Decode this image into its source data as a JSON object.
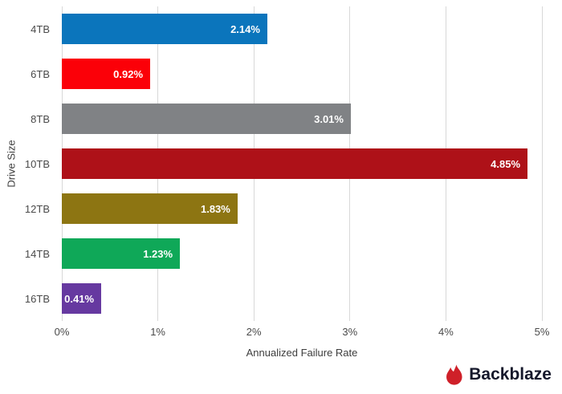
{
  "chart_data": {
    "type": "bar",
    "orientation": "horizontal",
    "title": "",
    "xlabel": "Annualized Failure Rate",
    "ylabel": "Drive Size",
    "xlim": [
      0,
      5
    ],
    "xticks": [
      "0%",
      "1%",
      "2%",
      "3%",
      "4%",
      "5%"
    ],
    "grid": true,
    "categories": [
      "4TB",
      "6TB",
      "8TB",
      "10TB",
      "12TB",
      "14TB",
      "16TB"
    ],
    "values": [
      2.14,
      0.92,
      3.01,
      4.85,
      1.83,
      1.23,
      0.41
    ],
    "labels": [
      "2.14%",
      "0.92%",
      "3.01%",
      "4.85%",
      "1.83%",
      "1.23%",
      "0.41%"
    ],
    "colors": [
      "#0b75bc",
      "#fb0008",
      "#808285",
      "#ae1118",
      "#8d7512",
      "#0fa858",
      "#6639a0"
    ]
  },
  "branding": {
    "logo_text": "Backblaze",
    "flame_icon": "flame-icon",
    "flame_color": "#cf2029",
    "text_color": "#15182b"
  }
}
